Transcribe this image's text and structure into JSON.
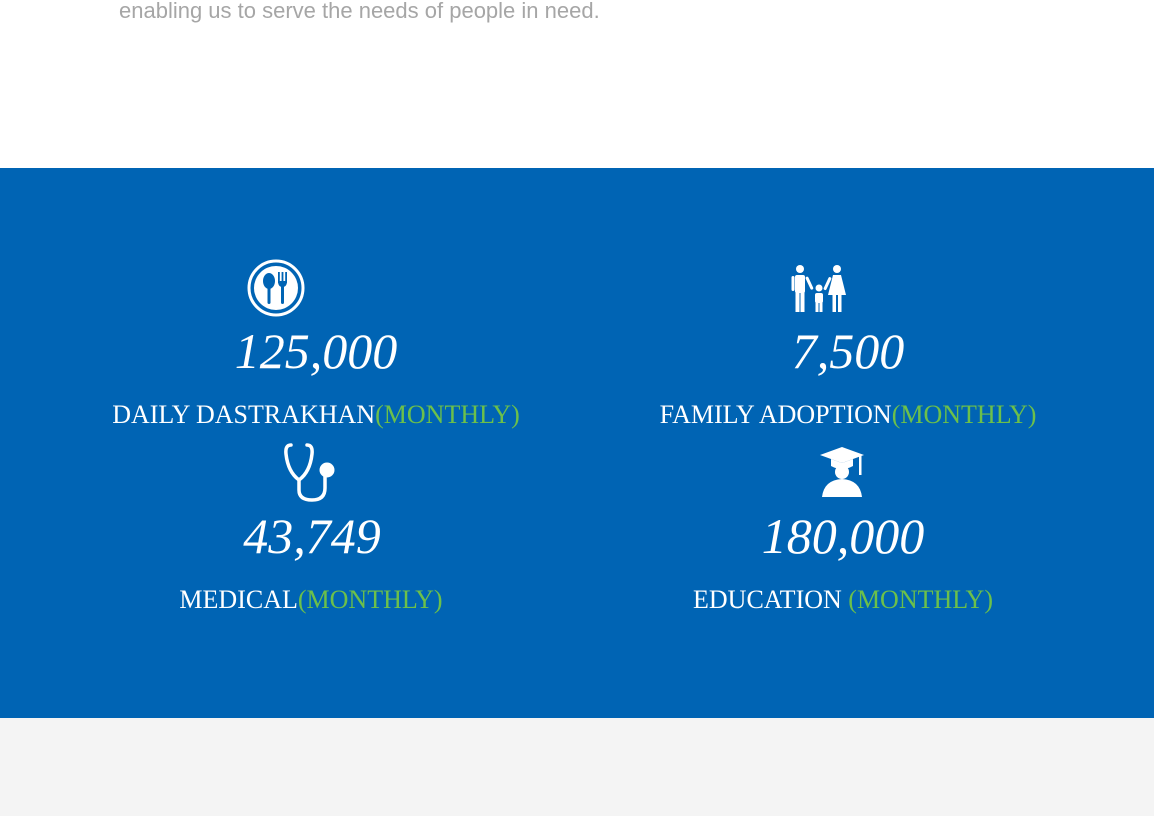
{
  "intro": {
    "text": "enabling us to serve the needs of people in need."
  },
  "colors": {
    "band": "#0064b4",
    "accent": "#6cc04a",
    "text": "#ffffff",
    "intro_text": "#a6a6a6",
    "footer_bg": "#f4f4f4"
  },
  "stats": [
    {
      "icon": "spoon-fork-icon",
      "value": "125,000",
      "label": "DAILY DASTRAKHAN",
      "suffix": "(MONTHLY)"
    },
    {
      "icon": "family-icon",
      "value": "7,500",
      "label": "FAMILY ADOPTION",
      "suffix": "(MONTHLY)"
    },
    {
      "icon": "stethoscope-icon",
      "value": "43,749",
      "label": "MEDICAL",
      "suffix": "(MONTHLY)"
    },
    {
      "icon": "graduate-icon",
      "value": "180,000",
      "label": "EDUCATION ",
      "suffix": "(MONTHLY)"
    }
  ]
}
